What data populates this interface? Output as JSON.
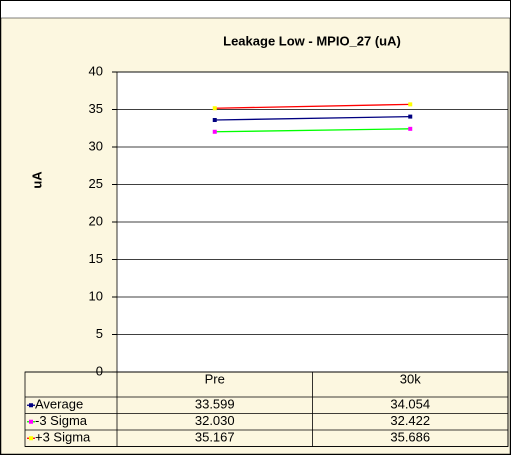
{
  "chart_data": {
    "type": "line",
    "title": "Leakage Low - MPIO_27 (uA)",
    "y_label": "uA",
    "categories": [
      "Pre",
      "30k"
    ],
    "series": [
      {
        "name": "Average",
        "color": "#000080",
        "marker_color": "#000080",
        "values": [
          33.599,
          34.054
        ],
        "value_labels": [
          "33.599",
          "34.054"
        ]
      },
      {
        "name": "-3 Sigma",
        "color": "#00ff00",
        "marker_color": "#ff00ff",
        "values": [
          32.03,
          32.422
        ],
        "value_labels": [
          "32.030",
          "32.422"
        ]
      },
      {
        "name": "+3 Sigma",
        "color": "#ff0000",
        "marker_color": "#ffff00",
        "values": [
          35.167,
          35.686
        ],
        "value_labels": [
          "35.167",
          "35.686"
        ]
      }
    ],
    "ylim": [
      0,
      40
    ],
    "yticks": [
      0,
      5,
      10,
      15,
      20,
      25,
      30,
      35,
      40
    ],
    "grid": true
  }
}
